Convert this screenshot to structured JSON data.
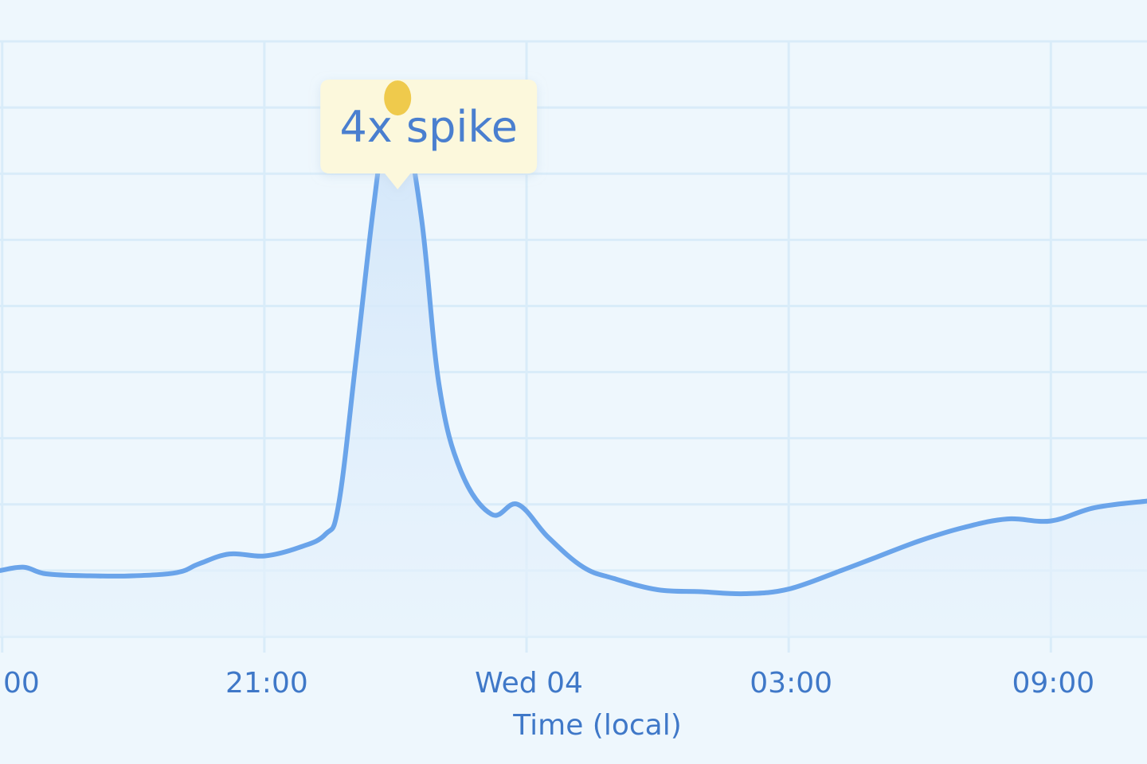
{
  "chart_data": {
    "type": "area",
    "title": "",
    "xlabel": "Time (local)",
    "ylabel": "",
    "x_tick_labels": [
      "00",
      "21:00",
      "Wed 04",
      "03:00",
      "09:00"
    ],
    "x_tick_hours": [
      -6,
      0,
      6,
      12,
      18
    ],
    "xlim_hours": [
      -6.05,
      20.2
    ],
    "ylim": [
      0,
      9
    ],
    "grid": true,
    "legend": "none",
    "series": [
      {
        "points": [
          [
            -6.05,
            1.0
          ],
          [
            -5.5,
            1.05
          ],
          [
            -5.0,
            0.95
          ],
          [
            -4.0,
            0.92
          ],
          [
            -3.0,
            0.92
          ],
          [
            -2.0,
            0.97
          ],
          [
            -1.5,
            1.1
          ],
          [
            -0.8,
            1.25
          ],
          [
            0.0,
            1.22
          ],
          [
            0.8,
            1.35
          ],
          [
            1.4,
            1.55
          ],
          [
            1.7,
            2.0
          ],
          [
            2.1,
            4.2
          ],
          [
            2.5,
            6.5
          ],
          [
            2.85,
            8.1
          ],
          [
            3.15,
            8.0
          ],
          [
            3.6,
            6.3
          ],
          [
            4.0,
            3.8
          ],
          [
            4.5,
            2.5
          ],
          [
            5.2,
            1.85
          ],
          [
            5.8,
            2.0
          ],
          [
            6.5,
            1.5
          ],
          [
            7.3,
            1.05
          ],
          [
            8.0,
            0.88
          ],
          [
            9.0,
            0.71
          ],
          [
            10.0,
            0.68
          ],
          [
            11.0,
            0.65
          ],
          [
            12.0,
            0.72
          ],
          [
            13.2,
            1.0
          ],
          [
            14.0,
            1.2
          ],
          [
            15.0,
            1.45
          ],
          [
            16.0,
            1.65
          ],
          [
            17.0,
            1.78
          ],
          [
            18.0,
            1.75
          ],
          [
            19.0,
            1.95
          ],
          [
            20.2,
            2.05
          ]
        ]
      }
    ],
    "annotation": {
      "text": "4x spike",
      "x_hours": 3.05,
      "y": 8.0
    },
    "colors": {
      "background": "#eef7fd",
      "grid": "#d9ecf9",
      "line": "#6aa4ea",
      "fill_top": "#cfe4f9",
      "fill_bottom": "#e6f2fc",
      "marker": "#efca4c",
      "annotation_bg": "#fcf8dc",
      "label": "#3f78c8"
    }
  }
}
